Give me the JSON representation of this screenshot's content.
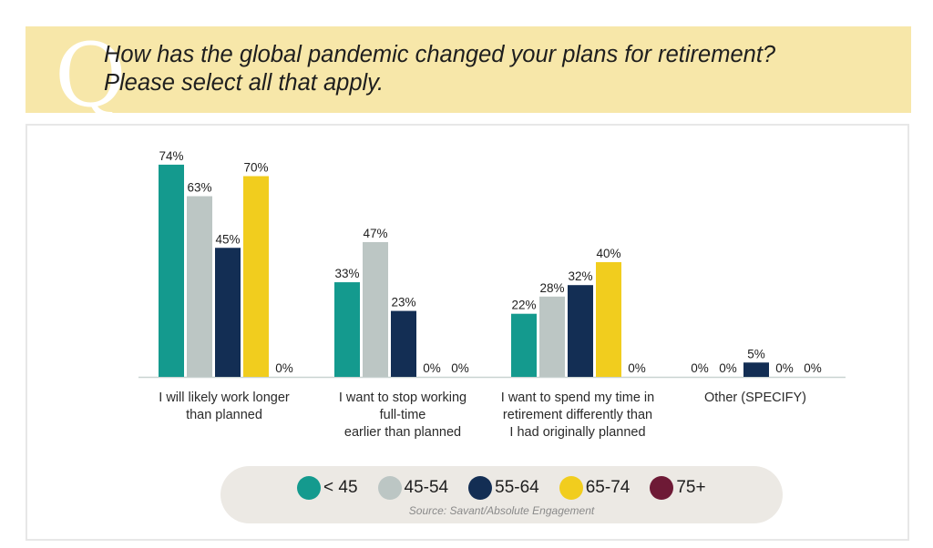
{
  "header": {
    "q_letter": "Q",
    "question_line1": "How has the global pandemic changed your plans for retirement?",
    "question_line2": "Please select all that apply."
  },
  "chart_data": {
    "type": "bar",
    "categories": [
      [
        "I will likely work longer",
        "than planned"
      ],
      [
        "I want to stop working",
        "full-time",
        "earlier than planned"
      ],
      [
        "I want to spend my time in",
        "retirement differently than",
        "I had originally planned"
      ],
      [
        "Other (SPECIFY)"
      ]
    ],
    "series": [
      {
        "name": "< 45",
        "color": "#149a8e",
        "values": [
          74,
          33,
          22,
          0
        ]
      },
      {
        "name": "45-54",
        "color": "#bcc6c4",
        "values": [
          63,
          47,
          28,
          0
        ]
      },
      {
        "name": "55-64",
        "color": "#132e54",
        "values": [
          45,
          23,
          32,
          5
        ]
      },
      {
        "name": "65-74",
        "color": "#f1cd1e",
        "values": [
          70,
          0,
          40,
          0
        ]
      },
      {
        "name": "75+",
        "color": "#6e1a36",
        "values": [
          0,
          0,
          0,
          0
        ]
      }
    ],
    "value_suffix": "%",
    "ylim": [
      0,
      80
    ],
    "grid": false,
    "legend_position": "bottom"
  },
  "source": "Source: Savant/Absolute Engagement"
}
